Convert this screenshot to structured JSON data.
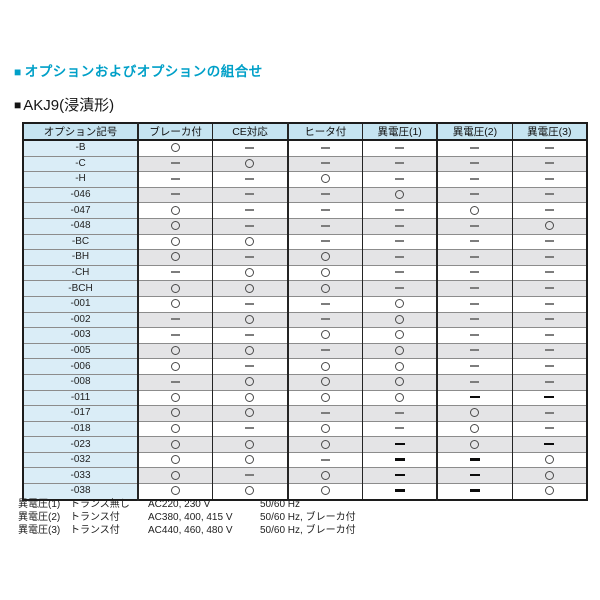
{
  "colors": {
    "accent": "#00a0c8",
    "table_header_bg": "#c6e4f1",
    "label_column_bg": "#daedf7",
    "alt_row_bg": "#e4e4e6",
    "dash_gray": "#7d7d7d"
  },
  "headings": {
    "section_marker": "■",
    "section_title": "オプションおよびオプションの組合せ",
    "subsection_marker": "■",
    "subsection_title": "AKJ9(浸漬形)"
  },
  "table": {
    "columns": [
      "オプション記号",
      "ブレーカ付",
      "CE対応",
      "ヒータ付",
      "異電圧(1)",
      "異電圧(2)",
      "異電圧(3)"
    ],
    "symbol_meanings": {
      "circle": "○",
      "dash": "−",
      "dash_bold": "−"
    },
    "rows": [
      {
        "code": "-B",
        "cells": [
          "circle",
          "dash",
          "dash",
          "dash",
          "dash",
          "dash"
        ]
      },
      {
        "code": "-C",
        "cells": [
          "dash",
          "circle",
          "dash",
          "dash",
          "dash",
          "dash"
        ]
      },
      {
        "code": "-H",
        "cells": [
          "dash",
          "dash",
          "circle",
          "dash",
          "dash",
          "dash"
        ]
      },
      {
        "code": "-046",
        "cells": [
          "dash",
          "dash",
          "dash",
          "circle",
          "dash",
          "dash"
        ]
      },
      {
        "code": "-047",
        "cells": [
          "circle",
          "dash",
          "dash",
          "dash",
          "circle",
          "dash"
        ]
      },
      {
        "code": "-048",
        "cells": [
          "circle",
          "dash",
          "dash",
          "dash",
          "dash",
          "circle"
        ]
      },
      {
        "code": "-BC",
        "cells": [
          "circle",
          "circle",
          "dash",
          "dash",
          "dash",
          "dash"
        ]
      },
      {
        "code": "-BH",
        "cells": [
          "circle",
          "dash",
          "circle",
          "dash",
          "dash",
          "dash"
        ]
      },
      {
        "code": "-CH",
        "cells": [
          "dash",
          "circle",
          "circle",
          "dash",
          "dash",
          "dash"
        ]
      },
      {
        "code": "-BCH",
        "cells": [
          "circle",
          "circle",
          "circle",
          "dash",
          "dash",
          "dash"
        ]
      },
      {
        "code": "-001",
        "cells": [
          "circle",
          "dash",
          "dash",
          "circle",
          "dash",
          "dash"
        ]
      },
      {
        "code": "-002",
        "cells": [
          "dash",
          "circle",
          "dash",
          "circle",
          "dash",
          "dash"
        ]
      },
      {
        "code": "-003",
        "cells": [
          "dash",
          "dash",
          "circle",
          "circle",
          "dash",
          "dash"
        ]
      },
      {
        "code": "-005",
        "cells": [
          "circle",
          "circle",
          "dash",
          "circle",
          "dash",
          "dash"
        ]
      },
      {
        "code": "-006",
        "cells": [
          "circle",
          "dash",
          "circle",
          "circle",
          "dash",
          "dash"
        ]
      },
      {
        "code": "-008",
        "cells": [
          "dash",
          "circle",
          "circle",
          "circle",
          "dash",
          "dash"
        ]
      },
      {
        "code": "-011",
        "cells": [
          "circle",
          "circle",
          "circle",
          "circle",
          "dash_bold",
          "dash_bold"
        ]
      },
      {
        "code": "-017",
        "cells": [
          "circle",
          "circle",
          "dash",
          "dash",
          "circle",
          "dash"
        ]
      },
      {
        "code": "-018",
        "cells": [
          "circle",
          "dash",
          "circle",
          "dash",
          "circle",
          "dash"
        ]
      },
      {
        "code": "-023",
        "cells": [
          "circle",
          "circle",
          "circle",
          "dash_bold",
          "circle",
          "dash_bold"
        ]
      },
      {
        "code": "-032",
        "cells": [
          "circle",
          "circle",
          "dash",
          "dash_bold",
          "dash_bold",
          "circle"
        ]
      },
      {
        "code": "-033",
        "cells": [
          "circle",
          "dash",
          "circle",
          "dash_bold",
          "dash_bold",
          "circle"
        ]
      },
      {
        "code": "-038",
        "cells": [
          "circle",
          "circle",
          "circle",
          "dash_bold",
          "dash_bold",
          "circle"
        ]
      }
    ]
  },
  "footnotes": [
    {
      "label": "異電圧(1)",
      "transformer": "トランス無し",
      "voltage": "AC220, 230 V",
      "frequency": "50/60 Hz"
    },
    {
      "label": "異電圧(2)",
      "transformer": "トランス付",
      "voltage": "AC380, 400, 415 V",
      "frequency": "50/60 Hz, ブレーカ付"
    },
    {
      "label": "異電圧(3)",
      "transformer": "トランス付",
      "voltage": "AC440, 460, 480 V",
      "frequency": "50/60 Hz, ブレーカ付"
    }
  ]
}
